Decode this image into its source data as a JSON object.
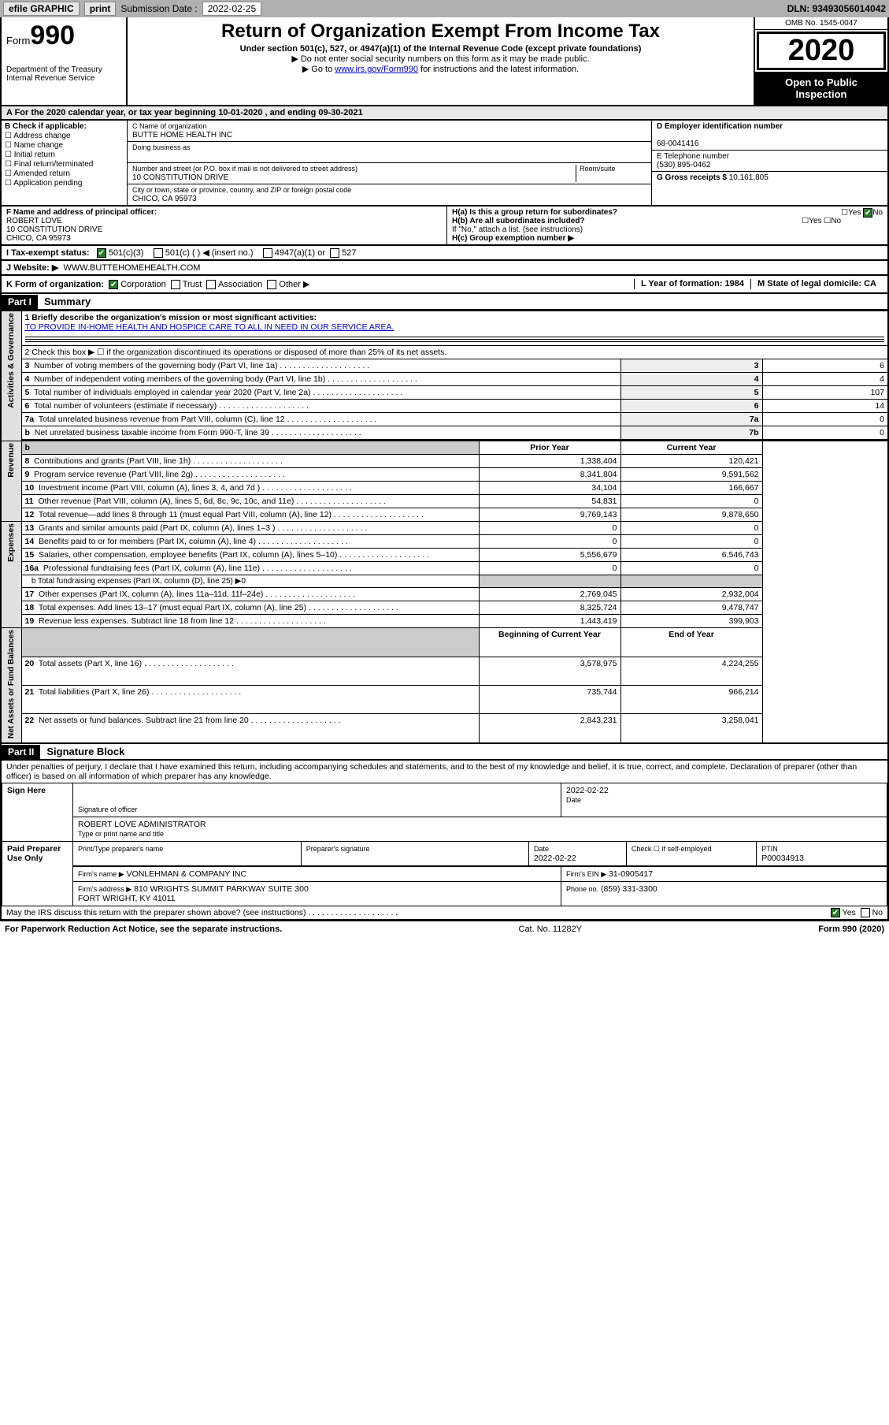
{
  "topbar": {
    "efile": "efile GRAPHIC",
    "print": "print",
    "subLabel": "Submission Date :",
    "subDate": "2022-02-25",
    "dln": "DLN: 93493056014042"
  },
  "header": {
    "formWord": "Form",
    "formNum": "990",
    "dept": "Department of the Treasury\nInternal Revenue Service",
    "title": "Return of Organization Exempt From Income Tax",
    "sub": "Under section 501(c), 527, or 4947(a)(1) of the Internal Revenue Code (except private foundations)",
    "note1": "▶ Do not enter social security numbers on this form as it may be made public.",
    "note2a": "▶ Go to ",
    "note2link": "www.irs.gov/Form990",
    "note2b": " for instructions and the latest information.",
    "omb": "OMB No. 1545-0047",
    "year": "2020",
    "openTo": "Open to Public Inspection"
  },
  "rowA": "A For the 2020 calendar year, or tax year beginning 10-01-2020    , and ending 09-30-2021",
  "boxB": {
    "label": "B Check if applicable:",
    "opts": [
      "Address change",
      "Name change",
      "Initial return",
      "Final return/terminated",
      "Amended return",
      "Application pending"
    ]
  },
  "boxC": {
    "nameLbl": "C Name of organization",
    "name": "BUTTE HOME HEALTH INC",
    "dba": "Doing business as",
    "streetLbl": "Number and street (or P.O. box if mail is not delivered to street address)",
    "roomLbl": "Room/suite",
    "street": "10 CONSTITUTION DRIVE",
    "cityLbl": "City or town, state or province, country, and ZIP or foreign postal code",
    "city": "CHICO, CA  95973"
  },
  "boxD": {
    "lbl": "D Employer identification number",
    "val": "68-0041416"
  },
  "boxE": {
    "lbl": "E Telephone number",
    "val": "(530) 895-0462"
  },
  "boxG": {
    "lbl": "G Gross receipts $",
    "val": "10,161,805"
  },
  "boxF": {
    "lbl": "F Name and address of principal officer:",
    "name": "ROBERT LOVE",
    "addr1": "10 CONSTITUTION DRIVE",
    "addr2": "CHICO, CA  95973"
  },
  "boxH": {
    "a": "H(a)  Is this a group return for subordinates?",
    "ayes": "Yes",
    "ano": "No",
    "b": "H(b)  Are all subordinates included?",
    "bnote": "If \"No,\" attach a list. (see instructions)",
    "c": "H(c)  Group exemption number ▶"
  },
  "taxRow": {
    "lbl": "I   Tax-exempt status:",
    "opt1": "501(c)(3)",
    "opt2": "501(c) (   ) ◀ (insert no.)",
    "opt3": "4947(a)(1) or",
    "opt4": "527"
  },
  "webRow": {
    "lbl": "J   Website: ▶",
    "val": "WWW.BUTTEHOMEHEALTH.COM"
  },
  "kRow": {
    "k": "K Form of organization:",
    "kopts": [
      "Corporation",
      "Trust",
      "Association",
      "Other ▶"
    ],
    "l": "L Year of formation: 1984",
    "m": "M State of legal domicile: CA"
  },
  "part1": {
    "hdr": "Part I",
    "title": "Summary"
  },
  "summary": {
    "q1lbl": "1  Briefly describe the organization's mission or most significant activities:",
    "q1val": "TO PROVIDE IN-HOME HEALTH AND HOSPICE CARE TO ALL IN NEED IN OUR SERVICE AREA.",
    "q2": "2  Check this box ▶ ☐  if the organization discontinued its operations or disposed of more than 25% of its net assets.",
    "rows_ag": [
      {
        "n": "3",
        "t": "Number of voting members of the governing body (Part VI, line 1a)",
        "box": "3",
        "v": "6"
      },
      {
        "n": "4",
        "t": "Number of independent voting members of the governing body (Part VI, line 1b)",
        "box": "4",
        "v": "4"
      },
      {
        "n": "5",
        "t": "Total number of individuals employed in calendar year 2020 (Part V, line 2a)",
        "box": "5",
        "v": "107"
      },
      {
        "n": "6",
        "t": "Total number of volunteers (estimate if necessary)",
        "box": "6",
        "v": "14"
      },
      {
        "n": "7a",
        "t": "Total unrelated business revenue from Part VIII, column (C), line 12",
        "box": "7a",
        "v": "0"
      },
      {
        "n": "b",
        "t": "Net unrelated business taxable income from Form 990-T, line 39",
        "box": "7b",
        "v": "0"
      }
    ],
    "priorHdr": "Prior Year",
    "currHdr": "Current Year",
    "rows_rev": [
      {
        "n": "8",
        "t": "Contributions and grants (Part VIII, line 1h)",
        "p": "1,338,404",
        "c": "120,421"
      },
      {
        "n": "9",
        "t": "Program service revenue (Part VIII, line 2g)",
        "p": "8,341,804",
        "c": "9,591,562"
      },
      {
        "n": "10",
        "t": "Investment income (Part VIII, column (A), lines 3, 4, and 7d )",
        "p": "34,104",
        "c": "166,667"
      },
      {
        "n": "11",
        "t": "Other revenue (Part VIII, column (A), lines 5, 6d, 8c, 9c, 10c, and 11e)",
        "p": "54,831",
        "c": "0"
      },
      {
        "n": "12",
        "t": "Total revenue—add lines 8 through 11 (must equal Part VIII, column (A), line 12)",
        "p": "9,769,143",
        "c": "9,878,650"
      }
    ],
    "rows_exp": [
      {
        "n": "13",
        "t": "Grants and similar amounts paid (Part IX, column (A), lines 1–3 )",
        "p": "0",
        "c": "0"
      },
      {
        "n": "14",
        "t": "Benefits paid to or for members (Part IX, column (A), line 4)",
        "p": "0",
        "c": "0"
      },
      {
        "n": "15",
        "t": "Salaries, other compensation, employee benefits (Part IX, column (A), lines 5–10)",
        "p": "5,556,679",
        "c": "6,546,743"
      },
      {
        "n": "16a",
        "t": "Professional fundraising fees (Part IX, column (A), line 11e)",
        "p": "0",
        "c": "0"
      }
    ],
    "row16b": "b  Total fundraising expenses (Part IX, column (D), line 25) ▶0",
    "rows_exp2": [
      {
        "n": "17",
        "t": "Other expenses (Part IX, column (A), lines 11a–11d, 11f–24e)",
        "p": "2,769,045",
        "c": "2,932,004"
      },
      {
        "n": "18",
        "t": "Total expenses. Add lines 13–17 (must equal Part IX, column (A), line 25)",
        "p": "8,325,724",
        "c": "9,478,747"
      },
      {
        "n": "19",
        "t": "Revenue less expenses. Subtract line 18 from line 12",
        "p": "1,443,419",
        "c": "399,903"
      }
    ],
    "begHdr": "Beginning of Current Year",
    "endHdr": "End of Year",
    "rows_na": [
      {
        "n": "20",
        "t": "Total assets (Part X, line 16)",
        "p": "3,578,975",
        "c": "4,224,255"
      },
      {
        "n": "21",
        "t": "Total liabilities (Part X, line 26)",
        "p": "735,744",
        "c": "966,214"
      },
      {
        "n": "22",
        "t": "Net assets or fund balances. Subtract line 21 from line 20",
        "p": "2,843,231",
        "c": "3,258,041"
      }
    ],
    "tabs": {
      "ag": "Activities & Governance",
      "rev": "Revenue",
      "exp": "Expenses",
      "na": "Net Assets or\nFund Balances"
    }
  },
  "part2": {
    "hdr": "Part II",
    "title": "Signature Block"
  },
  "sigDecl": "Under penalties of perjury, I declare that I have examined this return, including accompanying schedules and statements, and to the best of my knowledge and belief, it is true, correct, and complete. Declaration of preparer (other than officer) is based on all information of which preparer has any knowledge.",
  "signHere": {
    "label": "Sign Here",
    "sigOff": "Signature of officer",
    "date": "2022-02-22",
    "dateLbl": "Date",
    "name": "ROBERT LOVE  ADMINISTRATOR",
    "nameLbl": "Type or print name and title"
  },
  "paid": {
    "label": "Paid Preparer Use Only",
    "h1": "Print/Type preparer's name",
    "h2": "Preparer's signature",
    "h3": "Date",
    "h3v": "2022-02-22",
    "h4": "Check ☐ if self-employed",
    "h5": "PTIN",
    "h5v": "P00034913",
    "firmLbl": "Firm's name    ▶",
    "firm": "VONLEHMAN & COMPANY INC",
    "einLbl": "Firm's EIN ▶",
    "ein": "31-0905417",
    "addrLbl": "Firm's address ▶",
    "addr": "810 WRIGHTS SUMMIT PARKWAY SUITE 300\nFORT WRIGHT, KY  41011",
    "phoneLbl": "Phone no.",
    "phone": "(859) 331-3300"
  },
  "discuss": {
    "t": "May the IRS discuss this return with the preparer shown above? (see instructions)",
    "yes": "Yes",
    "no": "No"
  },
  "footer": {
    "l": "For Paperwork Reduction Act Notice, see the separate instructions.",
    "c": "Cat. No. 11282Y",
    "r": "Form 990 (2020)"
  }
}
